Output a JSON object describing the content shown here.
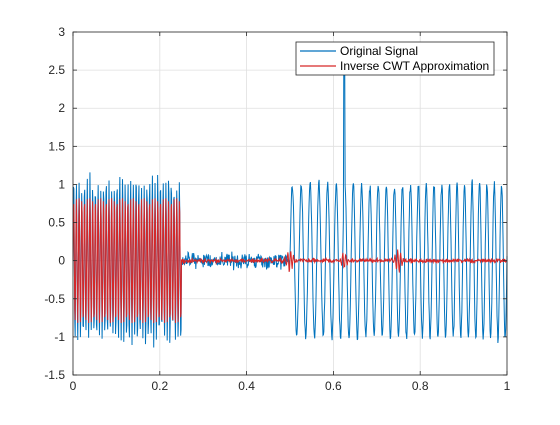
{
  "chart_data": {
    "type": "line",
    "title": "",
    "xlabel": "",
    "ylabel": "",
    "xlim": [
      0,
      1
    ],
    "ylim": [
      -1.5,
      3
    ],
    "grid": true,
    "legend_location": "top-right",
    "x_ticks": [
      0,
      0.2,
      0.4,
      0.6,
      0.8,
      1
    ],
    "x_tick_labels": [
      "0",
      "0.2",
      "0.4",
      "0.6",
      "0.8",
      "1"
    ],
    "y_ticks": [
      -1.5,
      -1,
      -0.5,
      0,
      0.5,
      1,
      1.5,
      2,
      2.5,
      3
    ],
    "y_tick_labels": [
      "-1.5",
      "-1",
      "-0.5",
      "0",
      "0.5",
      "1",
      "1.5",
      "2",
      "2.5",
      "3"
    ],
    "series": [
      {
        "name": "Original Signal",
        "color": "#0072BD",
        "description_of_segments": [
          {
            "x_range": [
              0,
              0.25
            ],
            "shape": "noisy sinusoid",
            "amplitude": 1.0,
            "cycles": 40
          },
          {
            "x_range": [
              0.25,
              0.5
            ],
            "shape": "noise",
            "amplitude": 0.12
          },
          {
            "x_range": [
              0.5,
              1.0
            ],
            "shape": "noisy sinusoid",
            "amplitude": 1.0,
            "cycles": 24
          },
          {
            "x": 0.625,
            "shape": "spike",
            "peak": 2.8
          }
        ]
      },
      {
        "name": "Inverse CWT Approximation",
        "color": "#D62728",
        "description_of_segments": [
          {
            "x_range": [
              0,
              0.25
            ],
            "shape": "sinusoid",
            "amplitude": 0.82,
            "cycles": 40
          },
          {
            "x_range": [
              0.25,
              1.0
            ],
            "shape": "near zero with small bursts",
            "amplitude": 0.05
          },
          {
            "x": 0.5,
            "shape": "burst",
            "amplitude": 0.15
          },
          {
            "x": 0.625,
            "shape": "burst",
            "amplitude": 0.1
          },
          {
            "x": 0.75,
            "shape": "burst",
            "amplitude": 0.15
          }
        ]
      }
    ]
  },
  "colors": {
    "axes": "#262626",
    "grid": "#DFDFDF",
    "series_blue": "#0072BD",
    "series_red": "#D62728"
  }
}
